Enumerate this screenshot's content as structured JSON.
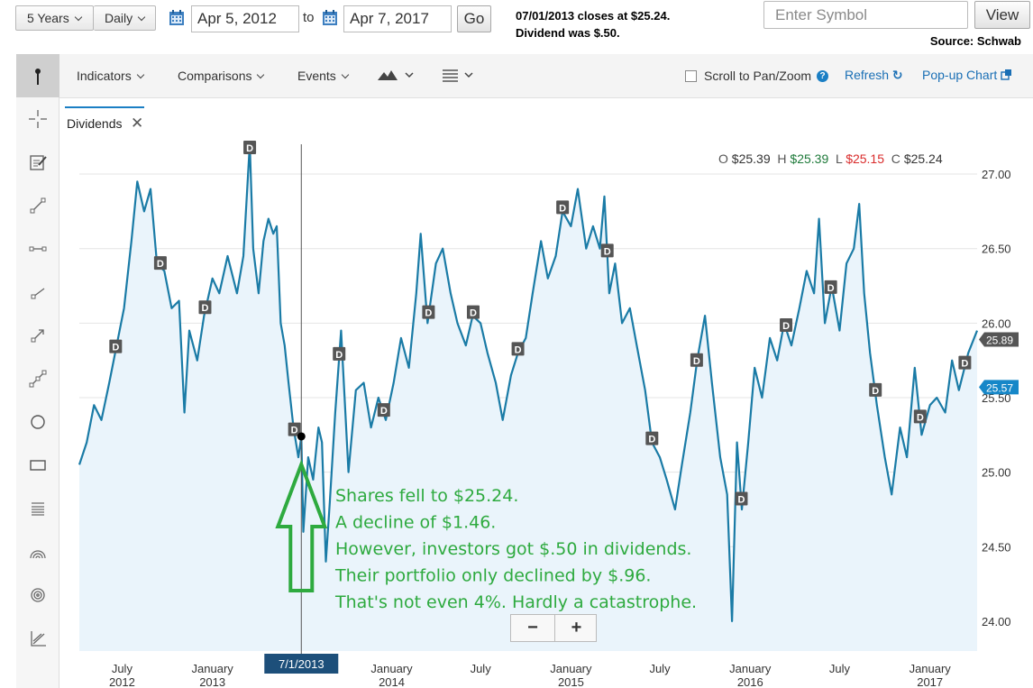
{
  "controls": {
    "range": "5 Years",
    "interval": "Daily",
    "start_date": "Apr 5, 2012",
    "to_label": "to",
    "end_date": "Apr 7, 2017",
    "go_label": "Go",
    "symbol_placeholder": "Enter Symbol",
    "view_label": "View"
  },
  "note": {
    "line1": "07/01/2013 closes at $25.24.",
    "line2": "Dividend was $.50.",
    "source": "Source: Schwab"
  },
  "toolbar": {
    "indicators": "Indicators",
    "comparisons": "Comparisons",
    "events": "Events",
    "scroll_pan": "Scroll to Pan/Zoom",
    "refresh": "Refresh",
    "popup": "Pop-up Chart"
  },
  "sidebar_tools": [
    "pointer-icon",
    "crosshair-icon",
    "annotation-icon",
    "line-icon",
    "segment-icon",
    "ray-icon",
    "arrow-icon",
    "channel-icon",
    "circle-icon",
    "rectangle-icon",
    "fibonacci-icon",
    "arc-icon",
    "target-icon",
    "regression-icon"
  ],
  "study_tab": {
    "label": "Dividends",
    "close": "✕"
  },
  "ohlc": {
    "o_label": "O",
    "o": "$25.39",
    "h_label": "H",
    "h": "$25.39",
    "l_label": "L",
    "l": "$25.15",
    "c_label": "C",
    "c": "$25.24",
    "colors": {
      "o": "#333333",
      "h": "#1e7a3a",
      "l": "#d92b2b",
      "c": "#333333"
    }
  },
  "zoom": {
    "minus": "−",
    "plus": "+"
  },
  "chart_data": {
    "type": "area",
    "ylim": [
      23.8,
      27.2
    ],
    "y_ticks": [
      24.0,
      24.5,
      25.0,
      25.5,
      26.0,
      26.5,
      27.0
    ],
    "y_tick_labels": [
      "24.00",
      "24.50",
      "25.00",
      "25.50",
      "26.00",
      "26.50",
      "27.00"
    ],
    "x_start": "2012-04-05",
    "x_end": "2017-04-07",
    "x_ticks": [
      {
        "date": "2012-07-01",
        "l1": "July",
        "l2": "2012"
      },
      {
        "date": "2013-01-01",
        "l1": "January",
        "l2": "2013"
      },
      {
        "date": "2014-01-01",
        "l1": "January",
        "l2": "2014"
      },
      {
        "date": "2014-07-01",
        "l1": "July",
        "l2": ""
      },
      {
        "date": "2015-01-01",
        "l1": "January",
        "l2": "2015"
      },
      {
        "date": "2015-07-01",
        "l1": "July",
        "l2": ""
      },
      {
        "date": "2016-01-01",
        "l1": "January",
        "l2": "2016"
      },
      {
        "date": "2016-07-01",
        "l1": "July",
        "l2": ""
      },
      {
        "date": "2017-01-01",
        "l1": "January",
        "l2": "2017"
      }
    ],
    "series": [
      {
        "points": [
          [
            "2012-04-05",
            25.05
          ],
          [
            "2012-04-20",
            25.2
          ],
          [
            "2012-05-05",
            25.45
          ],
          [
            "2012-05-20",
            25.35
          ],
          [
            "2012-06-05",
            25.6
          ],
          [
            "2012-06-20",
            25.85
          ],
          [
            "2012-07-05",
            26.1
          ],
          [
            "2012-07-20",
            26.55
          ],
          [
            "2012-08-01",
            26.95
          ],
          [
            "2012-08-15",
            26.75
          ],
          [
            "2012-08-28",
            26.9
          ],
          [
            "2012-09-10",
            26.4
          ],
          [
            "2012-09-25",
            26.35
          ],
          [
            "2012-10-10",
            26.1
          ],
          [
            "2012-10-25",
            26.15
          ],
          [
            "2012-11-05",
            25.4
          ],
          [
            "2012-11-15",
            25.95
          ],
          [
            "2012-12-01",
            25.75
          ],
          [
            "2012-12-15",
            26.05
          ],
          [
            "2013-01-01",
            26.3
          ],
          [
            "2013-01-15",
            26.2
          ],
          [
            "2013-02-01",
            26.45
          ],
          [
            "2013-02-20",
            26.2
          ],
          [
            "2013-03-05",
            26.45
          ],
          [
            "2013-03-18",
            27.2
          ],
          [
            "2013-03-25",
            26.5
          ],
          [
            "2013-04-05",
            26.2
          ],
          [
            "2013-04-15",
            26.55
          ],
          [
            "2013-04-25",
            26.7
          ],
          [
            "2013-05-05",
            26.6
          ],
          [
            "2013-05-12",
            26.65
          ],
          [
            "2013-05-20",
            26.0
          ],
          [
            "2013-05-28",
            25.85
          ],
          [
            "2013-06-05",
            25.6
          ],
          [
            "2013-06-15",
            25.3
          ],
          [
            "2013-06-25",
            25.1
          ],
          [
            "2013-07-01",
            25.24
          ],
          [
            "2013-07-05",
            24.6
          ],
          [
            "2013-07-15",
            25.1
          ],
          [
            "2013-07-25",
            24.95
          ],
          [
            "2013-08-05",
            25.3
          ],
          [
            "2013-08-12",
            25.2
          ],
          [
            "2013-08-20",
            24.4
          ],
          [
            "2013-08-28",
            24.8
          ],
          [
            "2013-09-08",
            25.4
          ],
          [
            "2013-09-20",
            25.95
          ],
          [
            "2013-10-05",
            25.0
          ],
          [
            "2013-10-20",
            25.55
          ],
          [
            "2013-11-05",
            25.6
          ],
          [
            "2013-11-20",
            25.3
          ],
          [
            "2013-12-05",
            25.5
          ],
          [
            "2013-12-20",
            25.35
          ],
          [
            "2014-01-05",
            25.6
          ],
          [
            "2014-01-20",
            25.9
          ],
          [
            "2014-02-05",
            25.7
          ],
          [
            "2014-02-20",
            26.2
          ],
          [
            "2014-03-01",
            26.6
          ],
          [
            "2014-03-15",
            26.0
          ],
          [
            "2014-04-01",
            26.4
          ],
          [
            "2014-04-15",
            26.5
          ],
          [
            "2014-05-01",
            26.2
          ],
          [
            "2014-05-15",
            26.0
          ],
          [
            "2014-06-01",
            25.85
          ],
          [
            "2014-06-15",
            26.05
          ],
          [
            "2014-07-01",
            26.0
          ],
          [
            "2014-07-15",
            25.8
          ],
          [
            "2014-08-01",
            25.6
          ],
          [
            "2014-08-15",
            25.35
          ],
          [
            "2014-09-01",
            25.65
          ],
          [
            "2014-09-15",
            25.8
          ],
          [
            "2014-10-01",
            25.9
          ],
          [
            "2014-10-15",
            26.2
          ],
          [
            "2014-11-01",
            26.55
          ],
          [
            "2014-11-15",
            26.3
          ],
          [
            "2014-12-01",
            26.45
          ],
          [
            "2014-12-15",
            26.75
          ],
          [
            "2015-01-01",
            26.65
          ],
          [
            "2015-01-15",
            26.9
          ],
          [
            "2015-02-01",
            26.5
          ],
          [
            "2015-02-15",
            26.65
          ],
          [
            "2015-03-01",
            26.5
          ],
          [
            "2015-03-10",
            26.85
          ],
          [
            "2015-03-20",
            26.2
          ],
          [
            "2015-04-01",
            26.4
          ],
          [
            "2015-04-15",
            26.0
          ],
          [
            "2015-05-01",
            26.1
          ],
          [
            "2015-05-15",
            25.85
          ],
          [
            "2015-06-01",
            25.55
          ],
          [
            "2015-06-15",
            25.2
          ],
          [
            "2015-07-01",
            25.1
          ],
          [
            "2015-07-15",
            24.95
          ],
          [
            "2015-08-01",
            24.75
          ],
          [
            "2015-08-15",
            25.05
          ],
          [
            "2015-09-01",
            25.4
          ],
          [
            "2015-09-15",
            25.75
          ],
          [
            "2015-10-01",
            26.05
          ],
          [
            "2015-10-15",
            25.6
          ],
          [
            "2015-11-01",
            25.1
          ],
          [
            "2015-11-15",
            24.85
          ],
          [
            "2015-11-25",
            24.0
          ],
          [
            "2015-12-05",
            25.2
          ],
          [
            "2015-12-15",
            24.75
          ],
          [
            "2015-12-28",
            25.2
          ],
          [
            "2016-01-10",
            25.7
          ],
          [
            "2016-01-25",
            25.5
          ],
          [
            "2016-02-10",
            25.9
          ],
          [
            "2016-02-25",
            25.75
          ],
          [
            "2016-03-10",
            26.0
          ],
          [
            "2016-03-25",
            25.85
          ],
          [
            "2016-04-10",
            26.1
          ],
          [
            "2016-04-25",
            26.35
          ],
          [
            "2016-05-10",
            26.2
          ],
          [
            "2016-05-20",
            26.7
          ],
          [
            "2016-06-01",
            26.0
          ],
          [
            "2016-06-15",
            26.25
          ],
          [
            "2016-07-01",
            25.95
          ],
          [
            "2016-07-15",
            26.4
          ],
          [
            "2016-07-30",
            26.5
          ],
          [
            "2016-08-10",
            26.8
          ],
          [
            "2016-08-20",
            26.2
          ],
          [
            "2016-09-01",
            25.8
          ],
          [
            "2016-09-15",
            25.45
          ],
          [
            "2016-10-01",
            25.1
          ],
          [
            "2016-10-15",
            24.85
          ],
          [
            "2016-11-01",
            25.3
          ],
          [
            "2016-11-15",
            25.1
          ],
          [
            "2016-12-01",
            25.7
          ],
          [
            "2016-12-15",
            25.25
          ],
          [
            "2017-01-01",
            25.45
          ],
          [
            "2017-01-15",
            25.5
          ],
          [
            "2017-02-01",
            25.4
          ],
          [
            "2017-02-15",
            25.75
          ],
          [
            "2017-03-01",
            25.55
          ],
          [
            "2017-03-20",
            25.8
          ],
          [
            "2017-04-07",
            25.95
          ]
        ]
      }
    ],
    "dividend_dates": [
      "2012-06-18",
      "2012-09-17",
      "2012-12-17",
      "2013-03-18",
      "2013-06-17",
      "2013-09-16",
      "2013-12-16",
      "2014-03-17",
      "2014-06-16",
      "2014-09-15",
      "2014-12-15",
      "2015-03-16",
      "2015-06-15",
      "2015-09-14",
      "2015-12-14",
      "2016-03-14",
      "2016-06-13",
      "2016-09-12",
      "2016-12-12",
      "2017-03-13"
    ],
    "dividend_marker": "D",
    "last_values": [
      {
        "label": "25.89",
        "value": 25.89,
        "style": "dark"
      },
      {
        "label": "25.57",
        "value": 25.57,
        "style": "blue"
      }
    ],
    "cursor": {
      "date": "2013-07-01",
      "label": "7/1/2013",
      "value": 25.24
    },
    "annotation": {
      "lines": [
        "Shares fell to $25.24.",
        "A decline of $1.46.",
        "However, investors got $.50 in dividends.",
        "Their portfolio only declined by $.96.",
        "That's not even 4%. Hardly a catastrophe."
      ],
      "color": "#2eaa3f"
    },
    "colors": {
      "line": "#1a7ba6",
      "fill": "#eaf4fb",
      "grid": "#e4e4e4",
      "marker": "#555555"
    }
  }
}
